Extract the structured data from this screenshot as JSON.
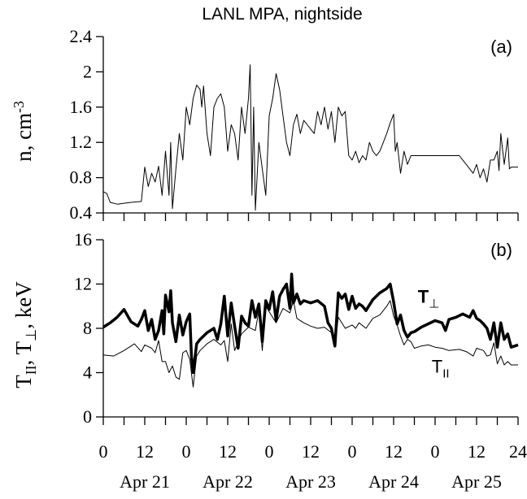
{
  "chart_data": [
    {
      "type": "line",
      "title": "LANL MPA, nightside",
      "panel_label": "(a)",
      "ylabel": [
        {
          "text": "n, cm"
        },
        {
          "text": "-3",
          "sup": true
        }
      ],
      "ylim": [
        0.4,
        2.4
      ],
      "yticks": [
        {
          "value": 0.4,
          "label": "0.4"
        },
        {
          "value": 0.8,
          "label": "0.8"
        },
        {
          "value": 1.2,
          "label": "1.2"
        },
        {
          "value": 1.6,
          "label": "1.6"
        },
        2,
        {
          "value": 2.4,
          "label": "2.4"
        }
      ],
      "xlim": [
        0,
        120
      ],
      "xtick_marks": [
        0,
        6,
        12,
        18,
        24,
        30,
        36,
        42,
        48,
        54,
        60,
        66,
        72,
        78,
        84,
        90,
        96,
        102,
        108,
        114,
        120
      ],
      "series": [
        {
          "color": "#000000",
          "width": 1,
          "x": [
            0,
            1,
            2,
            4,
            8,
            11,
            12,
            13,
            14,
            15,
            16,
            17,
            18,
            19,
            19.5,
            20,
            21,
            22,
            23,
            24,
            25,
            26,
            27,
            28,
            28.5,
            29,
            30,
            31,
            32,
            33,
            34,
            35,
            36,
            37,
            38,
            39,
            40,
            41,
            42,
            42.5,
            43,
            43.5,
            44,
            45,
            46,
            47,
            48,
            49,
            50,
            51,
            52,
            53,
            54,
            55,
            56,
            57,
            58,
            59,
            60,
            61,
            62,
            63,
            64,
            65,
            66,
            67,
            68,
            69,
            70,
            71,
            72,
            73,
            74,
            75,
            76,
            77,
            78,
            79,
            80,
            81,
            82,
            83,
            84,
            84.5,
            85,
            86,
            87,
            88,
            89,
            90,
            95,
            100,
            103,
            104,
            105,
            106,
            107,
            108,
            109,
            110,
            111,
            112,
            113,
            114,
            114.5,
            115,
            116,
            117,
            117.5,
            118,
            120
          ],
          "values": [
            0.64,
            0.62,
            0.52,
            0.5,
            0.52,
            0.53,
            0.92,
            0.7,
            0.85,
            0.75,
            0.93,
            0.6,
            1.1,
            0.6,
            1.2,
            0.45,
            0.9,
            1.3,
            1.0,
            1.6,
            1.4,
            1.7,
            1.85,
            1.8,
            1.6,
            1.84,
            1.3,
            1.05,
            1.6,
            1.7,
            1.75,
            1.6,
            1.1,
            1.4,
            1.3,
            1.0,
            1.6,
            1.3,
            1.7,
            2.08,
            0.6,
            1.6,
            0.43,
            1.2,
            0.9,
            0.6,
            1.5,
            1.7,
            1.98,
            1.8,
            1.5,
            1.2,
            1.05,
            1.4,
            1.52,
            1.3,
            1.45,
            1.4,
            1.35,
            1.3,
            1.55,
            1.4,
            1.6,
            1.35,
            1.55,
            1.2,
            1.6,
            1.5,
            1.55,
            1.05,
            1.0,
            1.1,
            0.97,
            1.05,
            1.0,
            1.2,
            1.1,
            1.05,
            1.1,
            1.2,
            1.3,
            1.42,
            1.52,
            1.1,
            1.2,
            0.85,
            1.1,
            0.95,
            1.05,
            1.05,
            1.05,
            1.05,
            1.05,
            1.0,
            0.95,
            0.9,
            0.85,
            0.95,
            0.8,
            0.9,
            0.75,
            1.0,
            1.0,
            1.1,
            0.88,
            1.3,
            0.95,
            1.25,
            0.9,
            0.92,
            0.92
          ]
        }
      ]
    },
    {
      "type": "line",
      "panel_label": "(b)",
      "ylabel": [
        {
          "text": "T"
        },
        {
          "text": "II",
          "sub": true
        },
        {
          "text": ",  T"
        },
        {
          "text": "⊥",
          "sub": true
        },
        {
          "text": ",  keV"
        }
      ],
      "ylim": [
        0,
        16
      ],
      "yticks": [
        0,
        4,
        8,
        12,
        16
      ],
      "xlim": [
        0,
        120
      ],
      "xticks": [
        0,
        12,
        {
          "value": 24,
          "label": "0"
        },
        {
          "value": 36,
          "label": "12"
        },
        {
          "value": 48,
          "label": "0"
        },
        {
          "value": 60,
          "label": "12"
        },
        {
          "value": 72,
          "label": "0"
        },
        {
          "value": 84,
          "label": "12"
        },
        {
          "value": 96,
          "label": "0"
        },
        {
          "value": 108,
          "label": "12"
        },
        {
          "value": 120,
          "label": "24"
        }
      ],
      "xminor_ticks": [
        6,
        18,
        30,
        42,
        54,
        66,
        78,
        90,
        102,
        114
      ],
      "xgroup_labels": [
        {
          "value": 12,
          "label": "Apr 21"
        },
        {
          "value": 36,
          "label": "Apr 22"
        },
        {
          "value": 60,
          "label": "Apr 23"
        },
        {
          "value": 84,
          "label": "Apr 24"
        },
        {
          "value": 108,
          "label": "Apr 25"
        }
      ],
      "series": [
        {
          "name": "T",
          "name_sub": "⊥",
          "name_bold": true,
          "label_at": [
            91,
            10.3
          ],
          "color": "#000000",
          "width": 3.5,
          "x": [
            0,
            2,
            4,
            6,
            8,
            10,
            11,
            12,
            13,
            14,
            15,
            16,
            17,
            17.5,
            18,
            19,
            19.5,
            20,
            21,
            22,
            23,
            24,
            25,
            25.5,
            26,
            27,
            28,
            30,
            32,
            33,
            34,
            35,
            36,
            37,
            38,
            39,
            40,
            41,
            42,
            43,
            44,
            45,
            46,
            47,
            48,
            49,
            50,
            51,
            52,
            53,
            54,
            54.5,
            55,
            56,
            57,
            58,
            60,
            62,
            64,
            65,
            66,
            67,
            68,
            69,
            70,
            71,
            72,
            73,
            74,
            75,
            76,
            78,
            80,
            82,
            83,
            84,
            85,
            86,
            87,
            88,
            89,
            90,
            92,
            94,
            96,
            98,
            99,
            100,
            102,
            104,
            106,
            107,
            108,
            109,
            110,
            111,
            112,
            113,
            114,
            115,
            116,
            117,
            118,
            120
          ],
          "values": [
            8.1,
            8.5,
            9,
            9.7,
            8.6,
            8.2,
            8.8,
            9.6,
            7.8,
            8.8,
            7.0,
            7.8,
            9.6,
            7.5,
            11.0,
            9.5,
            11.4,
            8.5,
            6.8,
            9.2,
            7.4,
            8.6,
            9.3,
            5.5,
            4.0,
            6.6,
            7.0,
            7.6,
            8.0,
            7.0,
            8.4,
            10.9,
            7.3,
            10.3,
            8.2,
            6.2,
            9.1,
            8.5,
            8.2,
            10.5,
            9.0,
            10.2,
            6.8,
            10.5,
            9.7,
            11.3,
            8.7,
            10.9,
            11.5,
            12.0,
            9.8,
            12.9,
            10.3,
            11.1,
            10.2,
            10.5,
            10.3,
            10.5,
            10.0,
            8.5,
            8.0,
            6.4,
            11.2,
            10.7,
            11.1,
            9.7,
            10.9,
            9.8,
            10.2,
            10.0,
            9.6,
            10.6,
            11.2,
            11.6,
            12.0,
            10.4,
            8.4,
            9.2,
            7.8,
            7.2,
            7.6,
            7.7,
            8.1,
            8.4,
            8.7,
            8.5,
            7.8,
            8.8,
            9.0,
            9.3,
            9.0,
            9.6,
            8.9,
            8.7,
            8.4,
            8.0,
            7.0,
            8.5,
            6.3,
            8.5,
            7.0,
            7.5,
            6.3,
            6.5
          ]
        },
        {
          "name": "T",
          "name_sub": "II",
          "name_bold": false,
          "label_at": [
            95,
            4.0
          ],
          "color": "#000000",
          "width": 1,
          "x": [
            0,
            3,
            6,
            9,
            11,
            12,
            14,
            15,
            16,
            17,
            18,
            19,
            20,
            21,
            22,
            23,
            24,
            25,
            26,
            27,
            28,
            30,
            32,
            34,
            35,
            36,
            37,
            38,
            40,
            42,
            44,
            45,
            46,
            47,
            48,
            50,
            52,
            54,
            55,
            56,
            58,
            60,
            62,
            64,
            66,
            67,
            68,
            70,
            72,
            73,
            74,
            76,
            78,
            80,
            82,
            83,
            84,
            85,
            86,
            87,
            88,
            89,
            90,
            92,
            94,
            96,
            98,
            100,
            103,
            105,
            107,
            108,
            110,
            111,
            112,
            113,
            114,
            115,
            116,
            117,
            118,
            120
          ],
          "values": [
            5.6,
            5.5,
            6.0,
            6.6,
            5.9,
            6.5,
            6.2,
            5.8,
            6.9,
            5.0,
            5.0,
            4.0,
            4.6,
            3.6,
            3.4,
            5.8,
            6.0,
            5.2,
            2.7,
            5.5,
            6.0,
            6.6,
            7.0,
            6.5,
            6.9,
            5.0,
            8.4,
            6.0,
            7.5,
            8.1,
            7.8,
            9.6,
            6.0,
            10.0,
            9.5,
            8.5,
            9.8,
            9.4,
            10.5,
            8.9,
            8.5,
            8.2,
            8.0,
            8.1,
            7.6,
            6.5,
            9.0,
            8.0,
            8.3,
            8.0,
            8.5,
            8.0,
            8.9,
            9.2,
            10.0,
            10.5,
            9.1,
            8.3,
            7.3,
            6.5,
            7.0,
            6.8,
            6.2,
            6.4,
            6.5,
            6.3,
            6.2,
            6.0,
            6.1,
            5.9,
            5.5,
            6.2,
            6.0,
            5.5,
            5.6,
            6.7,
            4.8,
            5.5,
            4.7,
            5.0,
            4.7,
            4.7
          ]
        }
      ]
    }
  ]
}
